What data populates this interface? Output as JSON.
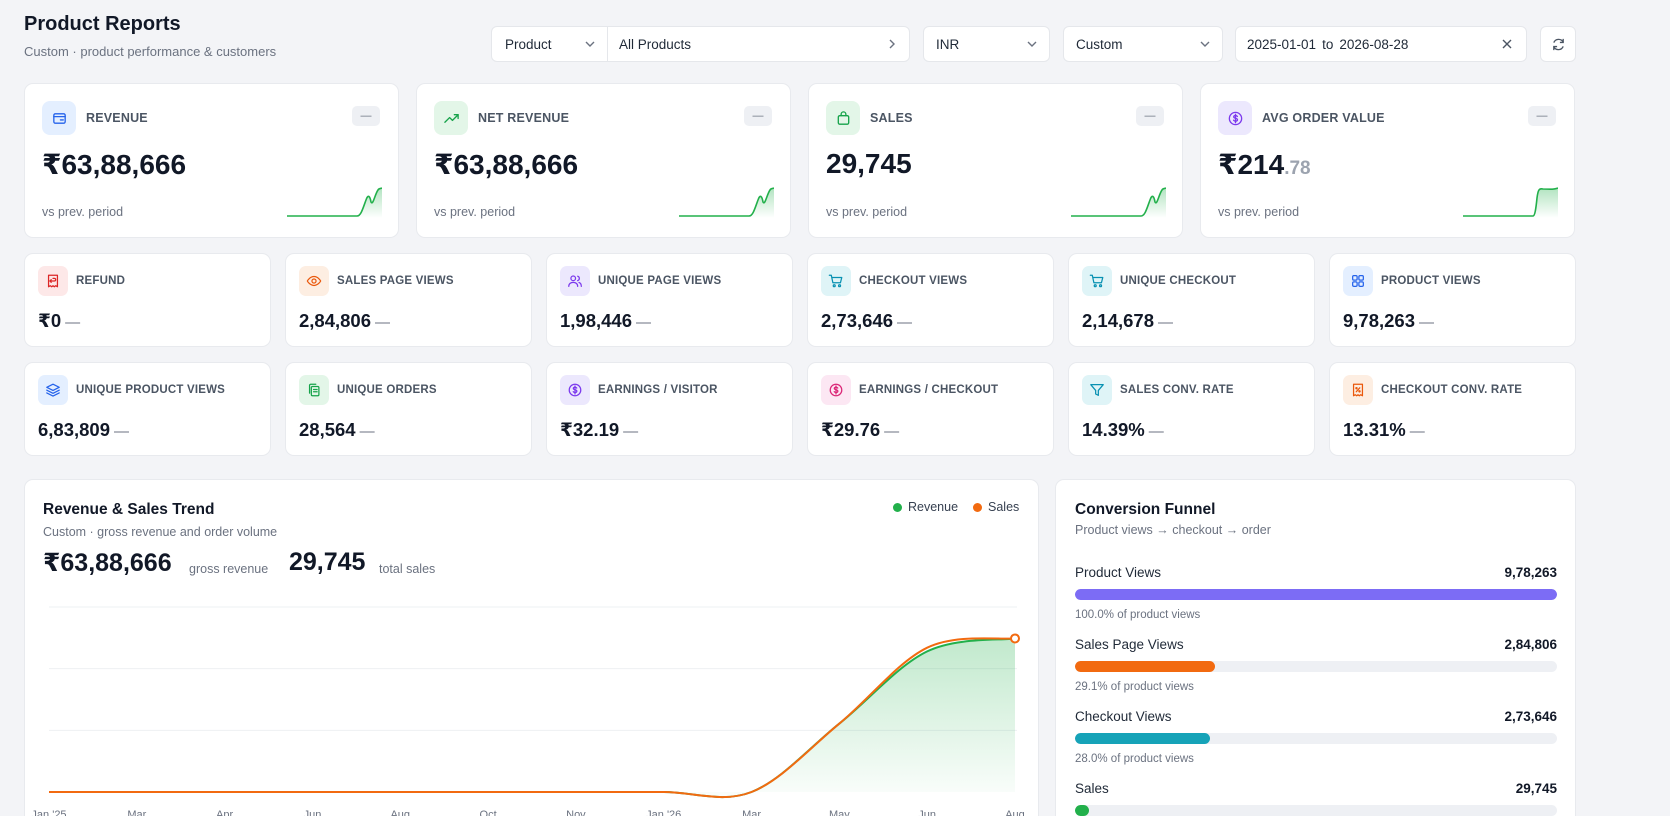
{
  "header": {
    "title": "Product Reports",
    "subtitle": "Custom · product performance & customers"
  },
  "filters": {
    "dimension": "Product",
    "selection": "All Products",
    "currency": "INR",
    "period": "Custom",
    "date_from": "2025-01-01",
    "date_sep": "to",
    "date_to": "2026-08-28"
  },
  "kpis": [
    {
      "label": "REVENUE",
      "value": "₹63,88,666",
      "value_dec": "",
      "change": "—",
      "note": "vs prev. period",
      "icon": "wallet-icon",
      "icon_bg": "#e4efff",
      "icon_color": "#2563eb"
    },
    {
      "label": "NET REVENUE",
      "value": "₹63,88,666",
      "value_dec": "",
      "change": "—",
      "note": "vs prev. period",
      "icon": "trending-up-icon",
      "icon_bg": "#e3f6e8",
      "icon_color": "#16a34a"
    },
    {
      "label": "SALES",
      "value": "29,745",
      "value_dec": "",
      "change": "—",
      "note": "vs prev. period",
      "icon": "shopping-bag-icon",
      "icon_bg": "#e3f6e8",
      "icon_color": "#16a34a"
    },
    {
      "label": "AVG ORDER VALUE",
      "value": "₹214",
      "value_dec": ".78",
      "change": "—",
      "note": "vs prev. period",
      "icon": "dollar-circle-icon",
      "icon_bg": "#ece8fd",
      "icon_color": "#7c3aed"
    }
  ],
  "metrics_row1": [
    {
      "label": "REFUND",
      "value": "₹0",
      "change": "—",
      "icon": "refund-receipt-icon",
      "icon_bg": "#fde8e8",
      "icon_color": "#dc2626"
    },
    {
      "label": "SALES PAGE VIEWS",
      "value": "2,84,806",
      "change": "—",
      "icon": "eye-icon",
      "icon_bg": "#fdeee2",
      "icon_color": "#ea580c"
    },
    {
      "label": "UNIQUE PAGE VIEWS",
      "value": "1,98,446",
      "change": "—",
      "icon": "users-icon",
      "icon_bg": "#ece8fd",
      "icon_color": "#7c3aed"
    },
    {
      "label": "CHECKOUT VIEWS",
      "value": "2,73,646",
      "change": "—",
      "icon": "cart-icon",
      "icon_bg": "#dff4f7",
      "icon_color": "#0891b2"
    },
    {
      "label": "UNIQUE CHECKOUT",
      "value": "2,14,678",
      "change": "—",
      "icon": "cart-check-icon",
      "icon_bg": "#dff4f7",
      "icon_color": "#0891b2"
    },
    {
      "label": "PRODUCT VIEWS",
      "value": "9,78,263",
      "change": "—",
      "icon": "grid-icon",
      "icon_bg": "#e4efff",
      "icon_color": "#2563eb"
    }
  ],
  "metrics_row2": [
    {
      "label": "UNIQUE PRODUCT VIEWS",
      "value": "6,83,809",
      "change": "—",
      "icon": "layers-icon",
      "icon_bg": "#e4efff",
      "icon_color": "#2563eb"
    },
    {
      "label": "UNIQUE ORDERS",
      "value": "28,564",
      "change": "—",
      "icon": "copy-icon",
      "icon_bg": "#e3f6e8",
      "icon_color": "#16a34a"
    },
    {
      "label": "EARNINGS / VISITOR",
      "value": "₹32.19",
      "change": "—",
      "icon": "dollar-circle-icon",
      "icon_bg": "#ece8fd",
      "icon_color": "#7c3aed"
    },
    {
      "label": "EARNINGS / CHECKOUT",
      "value": "₹29.76",
      "change": "—",
      "icon": "dollar-circle-icon",
      "icon_bg": "#fce7f3",
      "icon_color": "#db2777"
    },
    {
      "label": "SALES CONV. RATE",
      "value": "14.39%",
      "change": "—",
      "icon": "filter-icon",
      "icon_bg": "#dff4f7",
      "icon_color": "#0891b2"
    },
    {
      "label": "CHECKOUT CONV. RATE",
      "value": "13.31%",
      "change": "—",
      "icon": "percent-receipt-icon",
      "icon_bg": "#fdeee2",
      "icon_color": "#ea580c"
    }
  ],
  "trend": {
    "title": "Revenue & Sales Trend",
    "subtitle": "Custom · gross revenue and order volume",
    "gross_value": "₹63,88,666",
    "gross_label": "gross revenue",
    "sales_value": "29,745",
    "sales_label": "total sales",
    "legend_revenue": "Revenue",
    "legend_sales": "Sales",
    "revenue_color": "#22b04b",
    "sales_color": "#f26a10"
  },
  "chart_data": {
    "type": "line",
    "x": [
      "Jan '25",
      "Mar",
      "Apr",
      "Jun",
      "Aug",
      "Oct",
      "Nov",
      "Jan '26",
      "Mar",
      "May",
      "Jun",
      "Aug"
    ],
    "series": [
      {
        "name": "Revenue",
        "values": [
          0,
          0,
          0,
          0,
          0,
          0,
          0,
          0,
          0,
          0.37,
          0.76,
          0.83
        ]
      },
      {
        "name": "Sales",
        "values": [
          0,
          0,
          0,
          0,
          0,
          0,
          0,
          0,
          0,
          0.37,
          0.78,
          0.83
        ]
      }
    ],
    "ylim": [
      0,
      1
    ],
    "grid": true,
    "legend": "top-right"
  },
  "funnel": {
    "title": "Conversion Funnel",
    "subtitle": "Product views → checkout → order",
    "steps": [
      {
        "name": "Product Views",
        "value": "9,78,263",
        "pct": "100.0% of product views",
        "fraction": 1.0,
        "color": "#7c6cf5"
      },
      {
        "name": "Sales Page Views",
        "value": "2,84,806",
        "pct": "29.1% of product views",
        "fraction": 0.291,
        "color": "#f26a10"
      },
      {
        "name": "Checkout Views",
        "value": "2,73,646",
        "pct": "28.0% of product views",
        "fraction": 0.28,
        "color": "#16a3b8"
      },
      {
        "name": "Sales",
        "value": "29,745",
        "pct": "",
        "fraction": 0.03,
        "color": "#22b04b"
      }
    ]
  }
}
